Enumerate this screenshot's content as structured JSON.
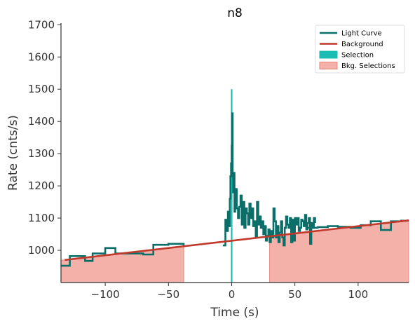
{
  "chart_data": {
    "type": "line",
    "title": "n8",
    "xlabel": "Time (s)",
    "ylabel": "Rate (cnts/s)",
    "xlim": [
      -135,
      140
    ],
    "ylim": [
      900,
      1705
    ],
    "xticks": [
      -100,
      -50,
      0,
      50,
      100
    ],
    "yticks": [
      1000,
      1100,
      1200,
      1300,
      1400,
      1500,
      1600,
      1700
    ],
    "grid": false,
    "legend_position": "top-right",
    "legend": [
      {
        "label": "Light Curve",
        "kind": "line",
        "color": "#0b6e69"
      },
      {
        "label": "Background",
        "kind": "line",
        "color": "#c0392b"
      },
      {
        "label": "Selection",
        "kind": "patch",
        "color": "#1bbcb1"
      },
      {
        "label": "Bkg. Selections",
        "kind": "patch",
        "color": "#f4b1aa",
        "edge": "#e8837a"
      }
    ],
    "background": {
      "x": [
        -132,
        140
      ],
      "y": [
        970,
        1093
      ]
    },
    "bkg_selections": [
      [
        -135,
        -38
      ],
      [
        30,
        140
      ]
    ],
    "selection": {
      "x": [
        -0.6,
        0.6
      ],
      "y": [
        1500,
        900
      ]
    },
    "light_curve": {
      "x": [
        -135,
        -128,
        -121,
        -116,
        -110,
        -100,
        -92,
        -86,
        -78,
        -70,
        -62,
        -56,
        -50,
        -44,
        -38
      ],
      "y": [
        952,
        982,
        982,
        967,
        990,
        1007,
        990,
        990,
        990,
        987,
        1017,
        1017,
        1020,
        1020,
        1015
      ]
    },
    "light_curve_mid": {
      "x": [
        -7,
        -5,
        -4,
        -3,
        -2,
        -1.5,
        -1,
        -0.5,
        0,
        0.4,
        0.8,
        1.2,
        1.7,
        2.2,
        2.8,
        3.4,
        4,
        5,
        6,
        7,
        8,
        9,
        10,
        11,
        12,
        13,
        14,
        15,
        16,
        17,
        18,
        19,
        20,
        21,
        22,
        23,
        24,
        25,
        26,
        27,
        28,
        29,
        30,
        31,
        32,
        33,
        34,
        35,
        36,
        37,
        38,
        39,
        40,
        41,
        42,
        43,
        44,
        45,
        46,
        47,
        48,
        49,
        50,
        51,
        52,
        53,
        54,
        55,
        56,
        57,
        58,
        59,
        60,
        61,
        62,
        63,
        64,
        65,
        66
      ],
      "y": [
        1015,
        1095,
        1060,
        1120,
        1075,
        1160,
        1230,
        1270,
        1325,
        1425,
        1230,
        1180,
        1240,
        1120,
        1160,
        1190,
        1130,
        1100,
        1135,
        1170,
        1080,
        1150,
        1070,
        1130,
        1115,
        1080,
        1145,
        1100,
        1130,
        1075,
        1090,
        1040,
        1150,
        1080,
        1105,
        1070,
        1090,
        1050,
        1075,
        1030,
        1045,
        1065,
        1025,
        1060,
        1040,
        1130,
        1090,
        1040,
        1075,
        1025,
        1055,
        1090,
        1040,
        1015,
        1070,
        1105,
        1080,
        1070,
        1100,
        1025,
        1095,
        1030,
        1100,
        1080,
        1100,
        1060,
        1070,
        1095,
        1090,
        1075,
        1110,
        1065,
        1085,
        1100,
        1020,
        1085,
        1070,
        1100,
        1085
      ]
    },
    "light_curve_tail": {
      "x": [
        60,
        68,
        76,
        84,
        94,
        102,
        110,
        118,
        126,
        134,
        140
      ],
      "y": [
        1070,
        1072,
        1075,
        1073,
        1070,
        1078,
        1090,
        1063,
        1090,
        1092,
        1092
      ]
    }
  }
}
